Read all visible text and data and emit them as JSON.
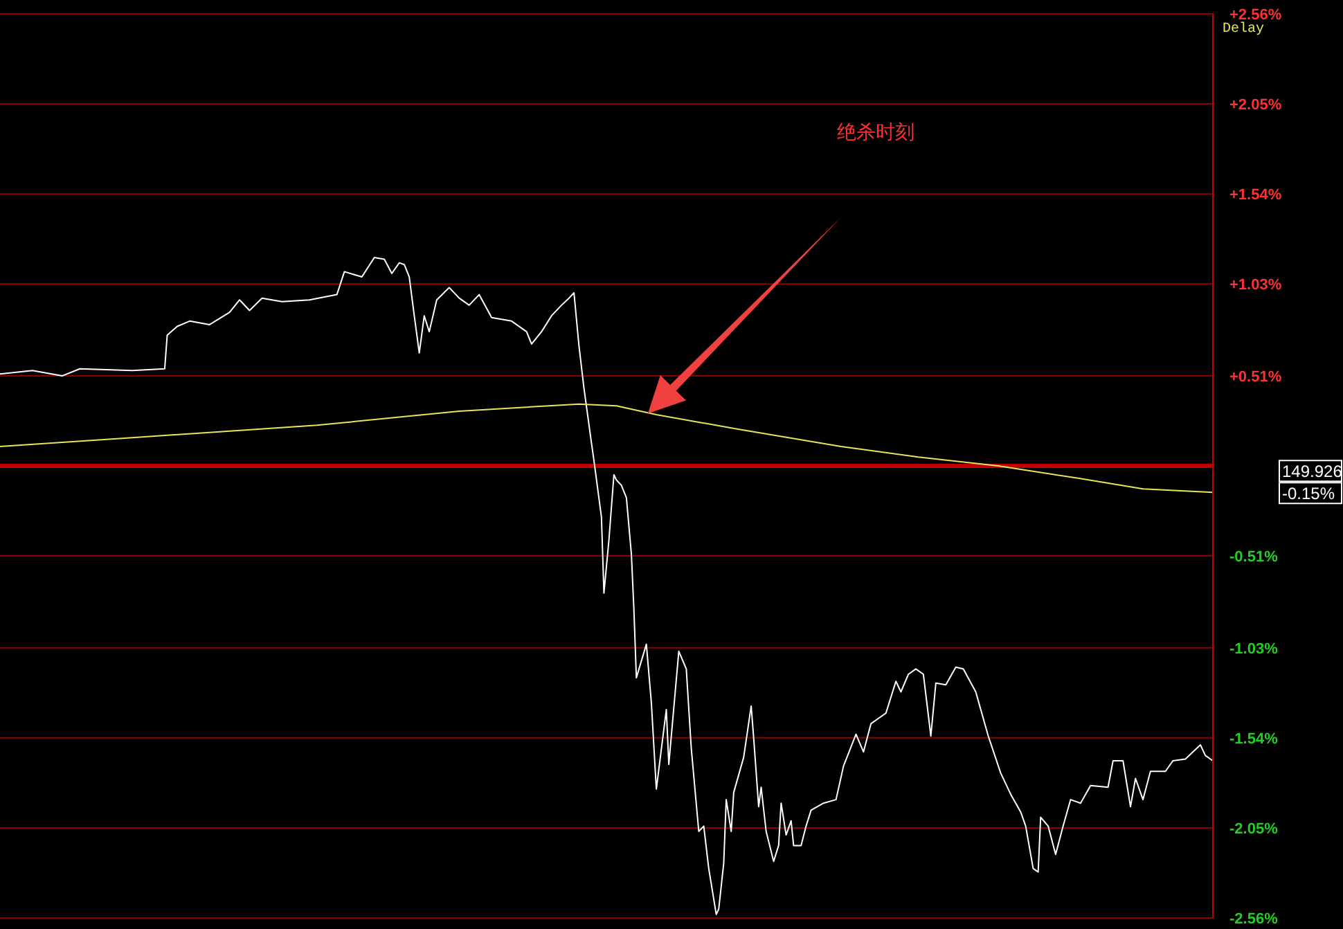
{
  "chart_data": {
    "type": "line",
    "categories": [
      null,
      null,
      null,
      null,
      null,
      null,
      null,
      null,
      null,
      null,
      null,
      null,
      null,
      null,
      null,
      null,
      null,
      null,
      null,
      null,
      null,
      null,
      null,
      null,
      null,
      null,
      null,
      null,
      null,
      null,
      null,
      null,
      null,
      null,
      null,
      null,
      null,
      null,
      null,
      null,
      null,
      null,
      null,
      null,
      null,
      null,
      null,
      null,
      null,
      null,
      null,
      null,
      null,
      null,
      null,
      null,
      null,
      null,
      null,
      null,
      null,
      null,
      null,
      null,
      null,
      null,
      null,
      null,
      null,
      null,
      null,
      null,
      null,
      null,
      null,
      null,
      null,
      null,
      null,
      null,
      null,
      null,
      null,
      null,
      null,
      null,
      null,
      null,
      null,
      null,
      null,
      null,
      null,
      null,
      null,
      null,
      null,
      null,
      null,
      null,
      null,
      null,
      null,
      null,
      null,
      null,
      null,
      null,
      null,
      null,
      null,
      null,
      null,
      null,
      null,
      null,
      null,
      null,
      null,
      null,
      null,
      null,
      null,
      null,
      null,
      null,
      null,
      null,
      null,
      null,
      null,
      null,
      null,
      null,
      null,
      null,
      null,
      null,
      null,
      null,
      null,
      null,
      null,
      null,
      null,
      null,
      null,
      null,
      null,
      null,
      null,
      null,
      null,
      null,
      null,
      null,
      null,
      null,
      null,
      null,
      null,
      null,
      null,
      null,
      null,
      null,
      null,
      null,
      null,
      null,
      null,
      null,
      null,
      null,
      null,
      null,
      null,
      null,
      null,
      null,
      null,
      null,
      null,
      null,
      null,
      null,
      null,
      null,
      null,
      null,
      null,
      null,
      null,
      null,
      null,
      null,
      null,
      null,
      null,
      null,
      null,
      null,
      null,
      null,
      null,
      null,
      null,
      null,
      null,
      null,
      null,
      null,
      null,
      null,
      null,
      null,
      null,
      null,
      null,
      null,
      null,
      null,
      null,
      null,
      null,
      null,
      null,
      null,
      null,
      null,
      null,
      null,
      null,
      null,
      null,
      null,
      null,
      null,
      null,
      null,
      null,
      null,
      null,
      null,
      null,
      null,
      null,
      null,
      null,
      null,
      null,
      null,
      null,
      null,
      null,
      null,
      null,
      null,
      null,
      null,
      null,
      null,
      null,
      null,
      null,
      null,
      null,
      null,
      null,
      null,
      null,
      null,
      null,
      null,
      null,
      null,
      null,
      null,
      null,
      null,
      null,
      null,
      null,
      null,
      null,
      null,
      null,
      null,
      null,
      null,
      null,
      null,
      null,
      null,
      null,
      null,
      null,
      null,
      null,
      null,
      null,
      null,
      null,
      null,
      null,
      null,
      null,
      null,
      null,
      null,
      null,
      null,
      null,
      null,
      null,
      null,
      null,
      null,
      null,
      null,
      null,
      null,
      null,
      null,
      null,
      null,
      null,
      null,
      null,
      null,
      null,
      null,
      null,
      null,
      null,
      null,
      null,
      null,
      null,
      null,
      null,
      null,
      null,
      null,
      null,
      null,
      null,
      null,
      null,
      null,
      null,
      null,
      null,
      null,
      null,
      null,
      null,
      null,
      null,
      null,
      null,
      null,
      null,
      null,
      null,
      null,
      null,
      null,
      null,
      null,
      null,
      null,
      null,
      null,
      null,
      null,
      null,
      null,
      null,
      null,
      null,
      null,
      null,
      null,
      null,
      null,
      null,
      null,
      null,
      null,
      null,
      null,
      null,
      null,
      null,
      null,
      null,
      null,
      null,
      null,
      null,
      null,
      null,
      null,
      null,
      null,
      null,
      null,
      null,
      null,
      null,
      null,
      null,
      null,
      null,
      null,
      null,
      null,
      null,
      null,
      null,
      null,
      null,
      null,
      null,
      null,
      null,
      null,
      null,
      null,
      null,
      null,
      null,
      null,
      null,
      null,
      null,
      null,
      null,
      null,
      null,
      null,
      null,
      null,
      null,
      null,
      null,
      null,
      null,
      null,
      null,
      null,
      null,
      null,
      null,
      null,
      null,
      null,
      null,
      null,
      null,
      null,
      null,
      null,
      null,
      null,
      null,
      null,
      null,
      null,
      null,
      null,
      null,
      null,
      null,
      null,
      null,
      null,
      null,
      null,
      null,
      null,
      null,
      null,
      null,
      null,
      null
    ],
    "ylim": [
      -2.56,
      2.56
    ],
    "yticks": [
      {
        "value": 2.56,
        "label": "+2.56%"
      },
      {
        "value": 2.05,
        "label": "+2.05%"
      },
      {
        "value": 1.54,
        "label": "+1.54%"
      },
      {
        "value": 1.03,
        "label": "+1.03%"
      },
      {
        "value": 0.51,
        "label": "+0.51%"
      },
      {
        "value": -0.51,
        "label": "-0.51%"
      },
      {
        "value": -1.03,
        "label": "-1.03%"
      },
      {
        "value": -1.54,
        "label": "-1.54%"
      },
      {
        "value": -2.05,
        "label": "-2.05%"
      },
      {
        "value": -2.56,
        "label": "-2.56%"
      }
    ],
    "tick_labels": "y",
    "grid": "y",
    "marker": "none",
    "line_style": "solid",
    "ref_lines": [
      {
        "axis": "y",
        "value": 0,
        "color": "#c00000"
      }
    ],
    "annotations": [
      "绝杀时刻",
      "Delay",
      "149.926",
      "-0.15%"
    ],
    "series": [
      {
        "color": "#ffffff",
        "values": [
          0.52,
          null,
          null,
          null,
          null,
          null,
          null,
          null,
          null,
          null,
          null,
          null,
          null,
          0.54,
          null,
          null,
          null,
          null,
          null,
          null,
          null,
          null,
          null,
          null,
          null,
          0.51,
          null,
          null,
          null,
          null,
          null,
          null,
          0.55,
          null,
          null,
          null,
          null,
          null,
          null,
          null,
          null,
          null,
          null,
          null,
          null,
          null,
          null,
          null,
          null,
          null,
          null,
          null,
          null,
          0.54,
          null,
          null,
          null,
          null,
          null,
          null,
          null,
          null,
          null,
          null,
          null,
          null,
          0.55,
          0.74,
          null,
          null,
          null,
          0.79,
          null,
          null,
          null,
          null,
          0.82,
          null,
          null,
          null,
          null,
          null,
          null,
          null,
          0.8,
          null,
          null,
          null,
          null,
          null,
          null,
          null,
          0.87,
          null,
          null,
          null,
          0.94,
          null,
          null,
          null,
          0.88,
          null,
          null,
          null,
          null,
          0.95,
          null,
          null,
          null,
          null,
          null,
          null,
          null,
          0.93,
          null,
          null,
          null,
          null,
          null,
          null,
          null,
          null,
          null,
          null,
          0.94,
          null,
          null,
          null,
          null,
          null,
          null,
          null,
          null,
          null,
          null,
          0.97,
          null,
          null,
          1.1,
          null,
          null,
          null,
          null,
          null,
          null,
          1.07,
          null,
          null,
          null,
          null,
          1.18,
          null,
          null,
          null,
          1.17,
          null,
          null,
          1.09,
          null,
          null,
          1.15,
          null,
          1.14,
          null,
          1.07,
          null,
          0.85,
          null,
          0.64,
          null,
          0.85,
          null,
          0.76,
          null,
          null,
          0.94,
          null,
          null,
          null,
          null,
          1.01,
          null,
          null,
          null,
          0.95,
          null,
          null,
          null,
          0.91,
          null,
          null,
          null,
          0.97,
          null,
          null,
          null,
          null,
          0.84,
          null,
          null,
          null,
          null,
          null,
          null,
          null,
          0.82,
          null,
          null,
          null,
          null,
          null,
          0.76,
          null,
          0.69,
          null,
          null,
          null,
          0.76,
          null,
          null,
          null,
          0.85,
          null,
          null,
          null,
          0.91,
          null,
          null,
          0.95,
          null,
          0.98,
          null,
          0.68,
          null,
          0.44,
          null,
          null,
          0.13,
          0.03,
          null,
          null,
          -0.29,
          -0.72,
          null,
          -0.42,
          null,
          -0.05,
          -0.08,
          null,
          -0.11,
          null,
          -0.18,
          null,
          -0.5,
          -0.81,
          -1.2,
          null,
          null,
          null,
          -1.01,
          null,
          -1.34,
          null,
          -1.83,
          null,
          null,
          null,
          -1.38,
          -1.69,
          null,
          null,
          null,
          -1.05,
          null,
          null,
          -1.15,
          null,
          -1.6,
          null,
          null,
          -2.07,
          null,
          -2.04,
          null,
          -2.28,
          null,
          null,
          -2.54,
          -2.51,
          null,
          -2.25,
          -1.89,
          null,
          -2.07,
          -1.85,
          null,
          null,
          null,
          -1.65,
          null,
          null,
          -1.36,
          -1.54,
          null,
          -1.93,
          -1.82,
          null,
          -2.07,
          null,
          null,
          -2.24,
          null,
          -2.15,
          -1.91,
          null,
          -2.09,
          null,
          -2.01,
          -2.15,
          null,
          null,
          -2.15,
          null,
          -2.04,
          null,
          -1.95,
          null,
          null,
          null,
          null,
          -1.91,
          null,
          null,
          null,
          null,
          -1.89,
          null,
          null,
          -1.7,
          null,
          null,
          null,
          null,
          -1.52,
          null,
          null,
          -1.62,
          null,
          null,
          -1.46,
          null,
          null,
          null,
          -1.42,
          null,
          -1.4,
          null,
          null,
          null,
          -1.22,
          null,
          -1.28,
          null,
          null,
          -1.18,
          null,
          null,
          -1.15,
          null,
          null,
          -1.18,
          null,
          null,
          -1.53,
          null,
          -1.23,
          null,
          null,
          null,
          -1.24,
          null,
          null,
          null,
          -1.14,
          null,
          null,
          -1.15,
          null,
          null,
          null,
          null,
          -1.28,
          null,
          null,
          null,
          null,
          -1.53,
          null,
          null,
          null,
          null,
          -1.74,
          null,
          null,
          null,
          -1.86,
          null,
          null,
          null,
          -1.96,
          null,
          -2.04,
          null,
          null,
          -2.28,
          null,
          -2.3,
          -1.99,
          null,
          null,
          -2.04,
          null,
          null,
          -2.2,
          null,
          null,
          -2.04,
          null,
          null,
          -1.89,
          null,
          null,
          null,
          -1.91,
          null,
          null,
          null,
          -1.81,
          null,
          null,
          null,
          null,
          null,
          null,
          -1.82,
          null,
          -1.67,
          null,
          null,
          null,
          -1.67,
          null,
          null,
          -1.93,
          null,
          -1.77,
          null,
          null,
          -1.89,
          null,
          null,
          -1.73,
          null,
          null,
          null,
          null,
          null,
          -1.73,
          null,
          null,
          -1.67,
          null,
          null,
          null,
          null,
          -1.66,
          null,
          null,
          null,
          null,
          null,
          -1.58,
          null,
          -1.64,
          null,
          null,
          -1.67
        ]
      },
      {
        "color": "#e6e65a",
        "values": [
          0.11,
          null,
          null,
          null,
          null,
          null,
          null,
          null,
          null,
          null,
          null,
          null,
          null,
          null,
          null,
          null,
          null,
          null,
          null,
          null,
          null,
          null,
          null,
          null,
          null,
          null,
          null,
          null,
          null,
          null,
          null,
          null,
          null,
          null,
          null,
          null,
          null,
          null,
          null,
          null,
          null,
          null,
          null,
          null,
          null,
          null,
          null,
          null,
          null,
          null,
          null,
          null,
          null,
          0.16,
          null,
          null,
          null,
          null,
          null,
          null,
          null,
          null,
          null,
          null,
          null,
          null,
          null,
          null,
          null,
          null,
          null,
          null,
          null,
          null,
          null,
          null,
          null,
          null,
          null,
          null,
          null,
          null,
          null,
          null,
          null,
          null,
          null,
          null,
          null,
          null,
          null,
          null,
          null,
          null,
          null,
          null,
          null,
          null,
          null,
          null,
          null,
          null,
          null,
          null,
          null,
          null,
          null,
          null,
          null,
          null,
          null,
          null,
          null,
          null,
          null,
          null,
          null,
          null,
          null,
          null,
          null,
          null,
          null,
          null,
          null,
          null,
          null,
          0.23,
          null,
          null,
          null,
          null,
          null,
          null,
          null,
          null,
          null,
          null,
          null,
          null,
          null,
          null,
          null,
          null,
          null,
          null,
          null,
          null,
          null,
          null,
          null,
          null,
          null,
          null,
          null,
          null,
          null,
          null,
          null,
          null,
          null,
          null,
          null,
          null,
          null,
          null,
          null,
          null,
          null,
          null,
          null,
          null,
          null,
          null,
          null,
          null,
          null,
          null,
          null,
          null,
          null,
          null,
          null,
          null,
          0.31,
          null,
          null,
          null,
          null,
          null,
          null,
          null,
          null,
          null,
          null,
          null,
          null,
          null,
          null,
          null,
          null,
          null,
          null,
          null,
          null,
          null,
          null,
          null,
          null,
          null,
          null,
          null,
          null,
          null,
          null,
          null,
          null,
          null,
          null,
          null,
          null,
          null,
          null,
          null,
          null,
          null,
          null,
          null,
          null,
          null,
          null,
          null,
          0.35,
          null,
          null,
          null,
          null,
          null,
          null,
          null,
          null,
          null,
          null,
          null,
          null,
          null,
          null,
          0.34,
          null,
          null,
          null,
          null,
          null,
          null,
          null,
          null,
          null,
          null,
          null,
          null,
          null,
          null,
          null,
          0.29,
          null,
          null,
          null,
          null,
          null,
          null,
          null,
          null,
          null,
          null,
          null,
          null,
          null,
          null,
          null,
          null,
          null,
          null,
          null,
          null,
          null,
          null,
          null,
          null,
          null,
          null,
          null,
          null,
          null,
          null,
          null,
          0.21,
          null,
          null,
          null,
          null,
          null,
          null,
          null,
          null,
          null,
          null,
          null,
          null,
          null,
          null,
          null,
          null,
          null,
          null,
          null,
          null,
          null,
          null,
          null,
          null,
          null,
          null,
          null,
          null,
          null,
          null,
          null,
          null,
          null,
          null,
          null,
          null,
          null,
          null,
          null,
          null,
          null,
          0.11,
          null,
          null,
          null,
          null,
          null,
          null,
          null,
          null,
          null,
          null,
          null,
          null,
          null,
          null,
          null,
          null,
          null,
          null,
          null,
          null,
          null,
          null,
          null,
          null,
          null,
          null,
          null,
          null,
          null,
          null,
          0.05,
          null,
          null,
          null,
          null,
          null,
          null,
          null,
          null,
          null,
          null,
          null,
          null,
          null,
          null,
          null,
          null,
          null,
          null,
          null,
          null,
          null,
          null,
          null,
          null,
          null,
          null,
          null,
          null,
          null,
          null,
          null,
          0.0,
          null,
          null,
          null,
          null,
          null,
          null,
          null,
          null,
          null,
          null,
          null,
          null,
          null,
          null,
          null,
          null,
          null,
          null,
          null,
          null,
          null,
          null,
          null,
          null,
          null,
          null,
          null,
          null,
          null,
          null,
          null,
          -0.07,
          null,
          null,
          null,
          null,
          null,
          null,
          null,
          null,
          null,
          null,
          null,
          null,
          null,
          null,
          null,
          null,
          null,
          null,
          null,
          null,
          null,
          null,
          null,
          null,
          null,
          -0.13,
          null,
          null,
          null,
          null,
          null,
          null,
          null,
          null,
          null,
          null,
          null,
          null,
          null,
          null,
          null,
          null,
          null,
          null,
          null,
          null,
          null,
          null,
          null,
          null,
          null,
          null,
          null,
          -0.15
        ]
      }
    ]
  }
}
